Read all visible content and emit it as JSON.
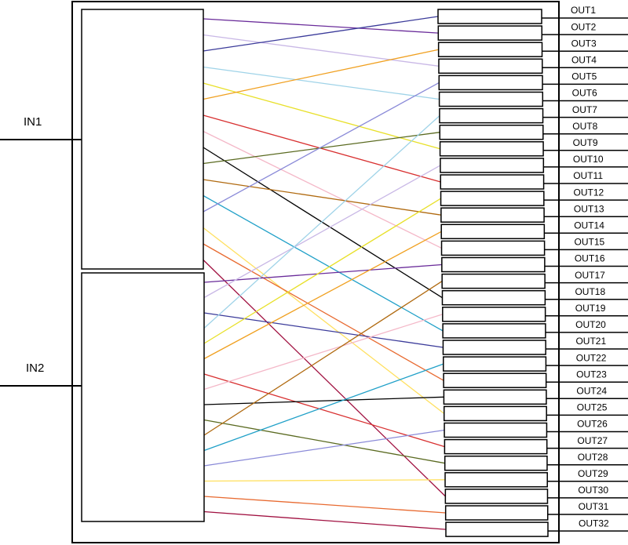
{
  "inputs": [
    "IN1",
    "IN2"
  ],
  "outputs": [
    "OUT1",
    "OUT2",
    "OUT3",
    "OUT4",
    "OUT5",
    "OUT6",
    "OUT7",
    "OUT8",
    "OUT9",
    "OUT10",
    "OUT11",
    "OUT12",
    "OUT13",
    "OUT14",
    "OUT15",
    "OUT16",
    "OUT17",
    "OUT18",
    "OUT19",
    "OUT20",
    "OUT21",
    "OUT22",
    "OUT23",
    "OUT24",
    "OUT25",
    "OUT26",
    "OUT27",
    "OUT28",
    "OUT29",
    "OUT30",
    "OUT31",
    "OUT32"
  ]
}
